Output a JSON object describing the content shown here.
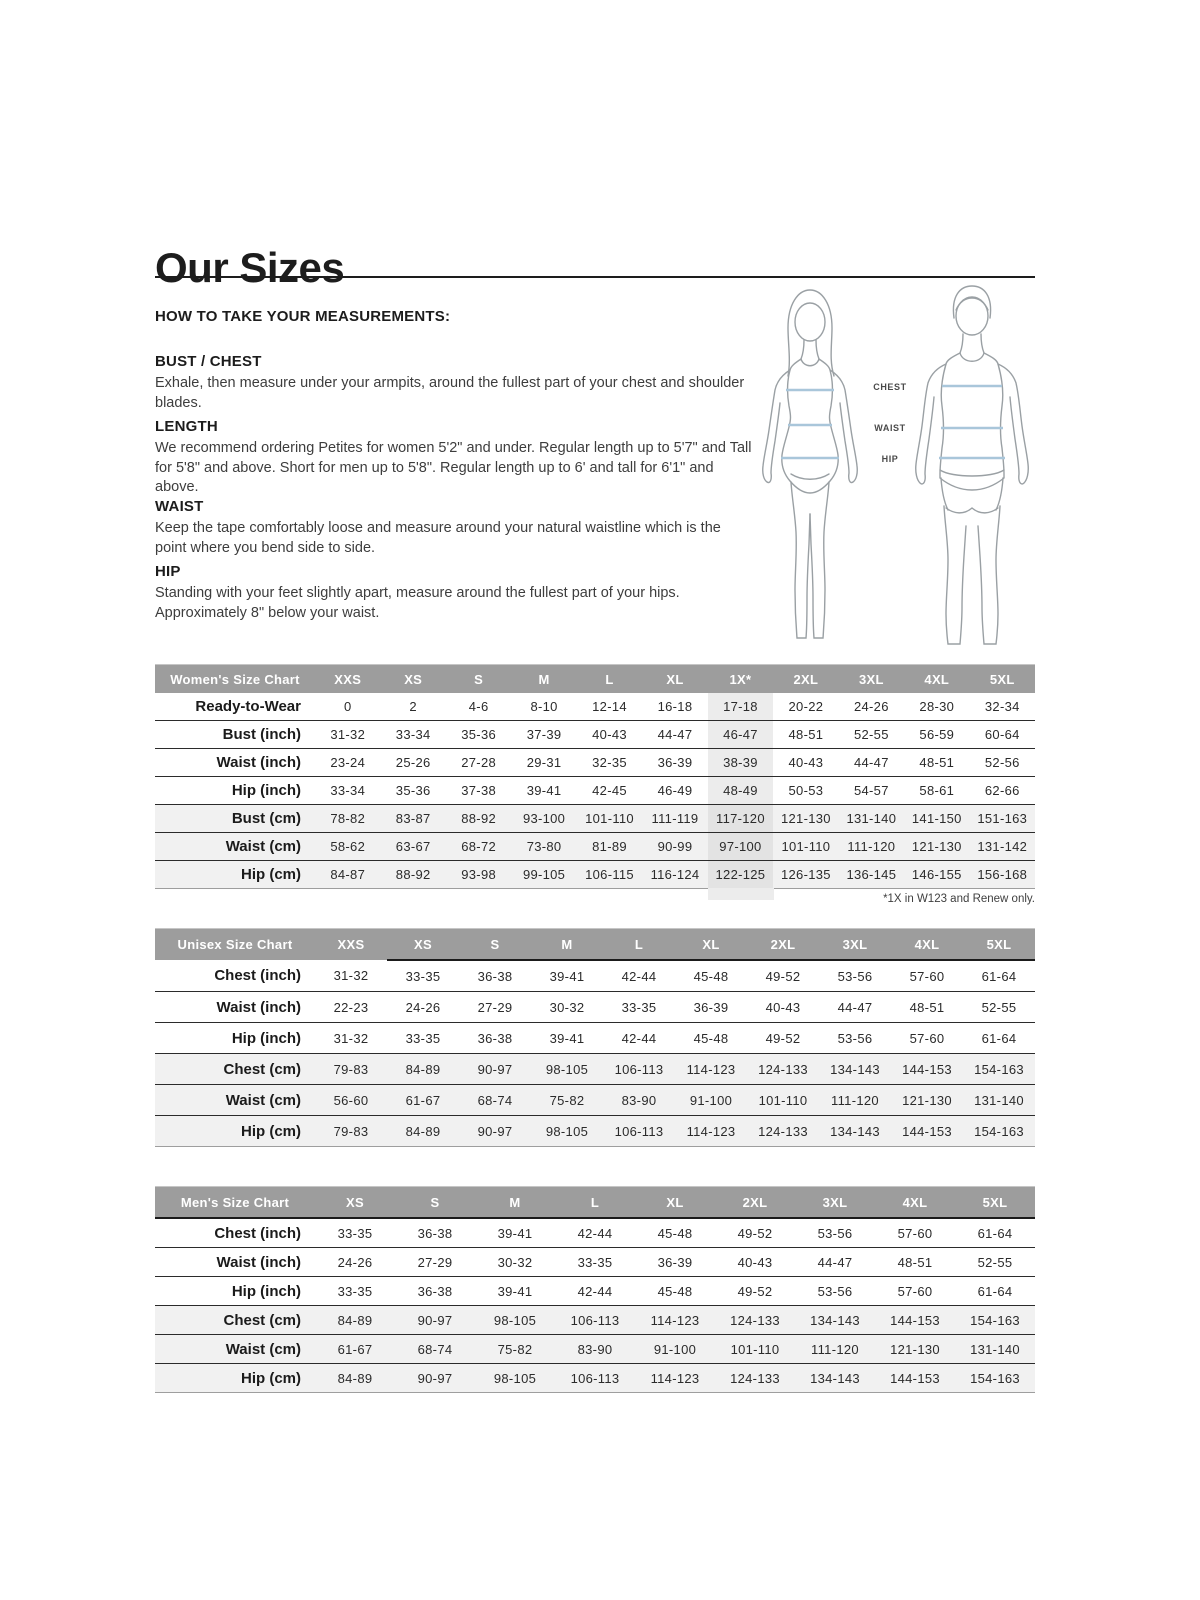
{
  "page": {
    "title": "Our Sizes"
  },
  "colors": {
    "header_gray": "#9d9d9d",
    "row_shade": "#f1f1f1",
    "highlight_column": "#ececec",
    "measure_line_blue": "#a9c6da",
    "figure_outline": "#9aa0a4",
    "text": "#231f20"
  },
  "measurements": {
    "heading": "HOW TO TAKE YOUR MEASUREMENTS:",
    "sections": [
      {
        "title": "BUST / CHEST",
        "body": "Exhale, then measure under your armpits, around the fullest part of your chest and shoulder blades."
      },
      {
        "title": "LENGTH",
        "body": "We recommend ordering Petites for women 5'2\" and under. Regular length up to 5'7\" and Tall for 5'8\" and above. Short for men up to 5'8\". Regular length up to 6' and tall for 6'1\" and above."
      },
      {
        "title": "WAIST",
        "body": "Keep the tape comfortably loose and measure around your natural waistline which is the point where you bend side to side."
      },
      {
        "title": "HIP",
        "body": "Standing with your feet slightly apart, measure around the fullest part of your hips. Approximately 8\" below your waist."
      }
    ]
  },
  "figure_labels": [
    "CHEST",
    "WAIST",
    "HIP"
  ],
  "tables": {
    "women": {
      "title": "Women's Size Chart",
      "sizes": [
        "XXS",
        "XS",
        "S",
        "M",
        "L",
        "XL",
        "1X*",
        "2XL",
        "3XL",
        "4XL",
        "5XL"
      ],
      "highlight_size": "1X*",
      "rows": [
        {
          "label": "Ready-to-Wear",
          "values": [
            "0",
            "2",
            "4-6",
            "8-10",
            "12-14",
            "16-18",
            "17-18",
            "20-22",
            "24-26",
            "28-30",
            "32-34"
          ]
        },
        {
          "label": "Bust (inch)",
          "values": [
            "31-32",
            "33-34",
            "35-36",
            "37-39",
            "40-43",
            "44-47",
            "46-47",
            "48-51",
            "52-55",
            "56-59",
            "60-64"
          ]
        },
        {
          "label": "Waist (inch)",
          "values": [
            "23-24",
            "25-26",
            "27-28",
            "29-31",
            "32-35",
            "36-39",
            "38-39",
            "40-43",
            "44-47",
            "48-51",
            "52-56"
          ]
        },
        {
          "label": "Hip (inch)",
          "values": [
            "33-34",
            "35-36",
            "37-38",
            "39-41",
            "42-45",
            "46-49",
            "48-49",
            "50-53",
            "54-57",
            "58-61",
            "62-66"
          ]
        },
        {
          "label": "Bust (cm)",
          "values": [
            "78-82",
            "83-87",
            "88-92",
            "93-100",
            "101-110",
            "111-119",
            "117-120",
            "121-130",
            "131-140",
            "141-150",
            "151-163"
          ]
        },
        {
          "label": "Waist (cm)",
          "values": [
            "58-62",
            "63-67",
            "68-72",
            "73-80",
            "81-89",
            "90-99",
            "97-100",
            "101-110",
            "111-120",
            "121-130",
            "131-142"
          ]
        },
        {
          "label": "Hip (cm)",
          "values": [
            "84-87",
            "88-92",
            "93-98",
            "99-105",
            "106-115",
            "116-124",
            "122-125",
            "126-135",
            "136-145",
            "146-155",
            "156-168"
          ]
        }
      ],
      "footnote": "*1X in W123 and Renew only."
    },
    "unisex": {
      "title": "Unisex Size Chart",
      "sizes": [
        "XXS",
        "XS",
        "S",
        "M",
        "L",
        "XL",
        "2XL",
        "3XL",
        "4XL",
        "5XL"
      ],
      "rows": [
        {
          "label": "Chest (inch)",
          "values": [
            "31-32",
            "33-35",
            "36-38",
            "39-41",
            "42-44",
            "45-48",
            "49-52",
            "53-56",
            "57-60",
            "61-64"
          ]
        },
        {
          "label": "Waist (inch)",
          "values": [
            "22-23",
            "24-26",
            "27-29",
            "30-32",
            "33-35",
            "36-39",
            "40-43",
            "44-47",
            "48-51",
            "52-55"
          ]
        },
        {
          "label": "Hip (inch)",
          "values": [
            "31-32",
            "33-35",
            "36-38",
            "39-41",
            "42-44",
            "45-48",
            "49-52",
            "53-56",
            "57-60",
            "61-64"
          ]
        },
        {
          "label": "Chest (cm)",
          "values": [
            "79-83",
            "84-89",
            "90-97",
            "98-105",
            "106-113",
            "114-123",
            "124-133",
            "134-143",
            "144-153",
            "154-163"
          ]
        },
        {
          "label": "Waist (cm)",
          "values": [
            "56-60",
            "61-67",
            "68-74",
            "75-82",
            "83-90",
            "91-100",
            "101-110",
            "111-120",
            "121-130",
            "131-140"
          ]
        },
        {
          "label": "Hip (cm)",
          "values": [
            "79-83",
            "84-89",
            "90-97",
            "98-105",
            "106-113",
            "114-123",
            "124-133",
            "134-143",
            "144-153",
            "154-163"
          ]
        }
      ]
    },
    "men": {
      "title": "Men's Size Chart",
      "sizes": [
        "XS",
        "S",
        "M",
        "L",
        "XL",
        "2XL",
        "3XL",
        "4XL",
        "5XL"
      ],
      "rows": [
        {
          "label": "Chest (inch)",
          "values": [
            "33-35",
            "36-38",
            "39-41",
            "42-44",
            "45-48",
            "49-52",
            "53-56",
            "57-60",
            "61-64"
          ]
        },
        {
          "label": "Waist (inch)",
          "values": [
            "24-26",
            "27-29",
            "30-32",
            "33-35",
            "36-39",
            "40-43",
            "44-47",
            "48-51",
            "52-55"
          ]
        },
        {
          "label": "Hip (inch)",
          "values": [
            "33-35",
            "36-38",
            "39-41",
            "42-44",
            "45-48",
            "49-52",
            "53-56",
            "57-60",
            "61-64"
          ]
        },
        {
          "label": "Chest (cm)",
          "values": [
            "84-89",
            "90-97",
            "98-105",
            "106-113",
            "114-123",
            "124-133",
            "134-143",
            "144-153",
            "154-163"
          ]
        },
        {
          "label": "Waist (cm)",
          "values": [
            "61-67",
            "68-74",
            "75-82",
            "83-90",
            "91-100",
            "101-110",
            "111-120",
            "121-130",
            "131-140"
          ]
        },
        {
          "label": "Hip (cm)",
          "values": [
            "84-89",
            "90-97",
            "98-105",
            "106-113",
            "114-123",
            "124-133",
            "134-143",
            "144-153",
            "154-163"
          ]
        }
      ]
    }
  }
}
